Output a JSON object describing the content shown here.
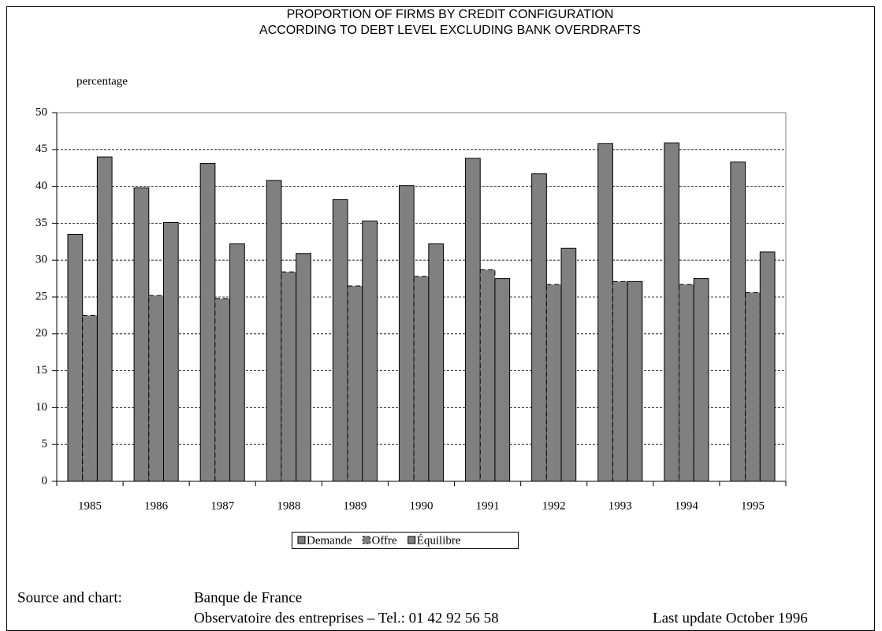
{
  "chart_data": {
    "type": "bar",
    "title": "PROPORTION OF FIRMS BY CREDIT CONFIGURATION",
    "subtitle": "ACCORDING TO DEBT LEVEL EXCLUDING BANK OVERDRAFTS",
    "y_label": "percentage",
    "categories": [
      "1985",
      "1986",
      "1987",
      "1988",
      "1989",
      "1990",
      "1991",
      "1992",
      "1993",
      "1994",
      "1995"
    ],
    "series": [
      {
        "name": "Demande",
        "color": "#808080",
        "values": [
          33.5,
          39.8,
          43.1,
          40.8,
          38.2,
          40.1,
          43.8,
          41.7,
          45.8,
          45.9,
          43.3
        ]
      },
      {
        "name": "Offre",
        "color": "#808080",
        "values": [
          22.5,
          25.2,
          24.8,
          28.4,
          26.5,
          27.8,
          28.7,
          26.7,
          27.1,
          26.7,
          25.6
        ]
      },
      {
        "name": "Équilibre",
        "color": "#808080",
        "values": [
          44.0,
          35.1,
          32.2,
          30.9,
          35.3,
          32.2,
          27.5,
          31.6,
          27.1,
          27.5,
          31.1
        ]
      }
    ],
    "ylim": [
      0,
      50
    ],
    "yticks": [
      0,
      5,
      10,
      15,
      20,
      25,
      30,
      35,
      40,
      45,
      50
    ],
    "grid": true,
    "legend": "bottom"
  },
  "footer": {
    "source_label": "Source and chart:",
    "source": "Banque de France",
    "contact": "Observatoire des entreprises – Tel.: 01 42 92 56 58",
    "update": "Last update October 1996"
  }
}
